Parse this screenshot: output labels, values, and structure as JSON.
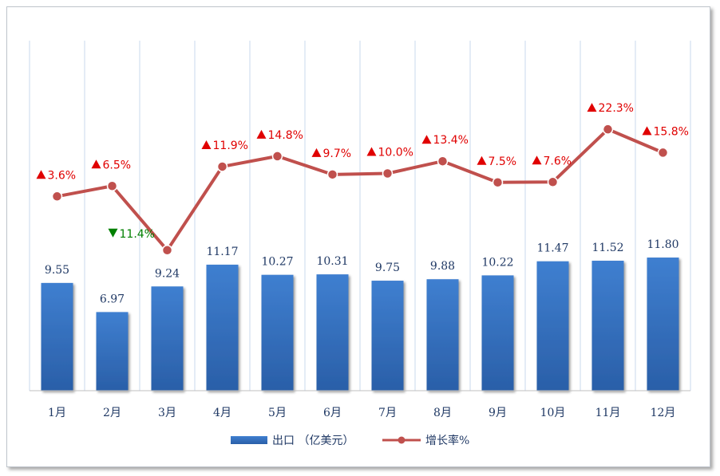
{
  "chart_data": {
    "type": "bar",
    "categories": [
      "1月",
      "2月",
      "3月",
      "4月",
      "5月",
      "6月",
      "7月",
      "8月",
      "9月",
      "10月",
      "11月",
      "12月"
    ],
    "series": [
      {
        "name": "出口（亿美元）",
        "type": "bar",
        "values": [
          9.55,
          6.97,
          9.24,
          11.17,
          10.27,
          10.31,
          9.75,
          9.88,
          10.22,
          11.47,
          11.52,
          11.8
        ],
        "labels": [
          "9.55",
          "6.97",
          "9.24",
          "11.17",
          "10.27",
          "10.31",
          "9.75",
          "9.88",
          "10.22",
          "11.47",
          "11.52",
          "11.80"
        ],
        "color": "#3a76c4"
      },
      {
        "name": "增长率%",
        "type": "line",
        "values": [
          3.6,
          6.5,
          -11.4,
          11.9,
          14.8,
          9.7,
          10.0,
          13.4,
          7.5,
          7.6,
          22.3,
          15.8
        ],
        "labels": [
          "3.6%",
          "6.5%",
          "11.4%",
          "11.9%",
          "14.8%",
          "9.7%",
          "10.0%",
          "13.4%",
          "7.5%",
          "7.6%",
          "22.3%",
          "15.8%"
        ],
        "color": "#c0504d"
      }
    ],
    "up_color": "#e00000",
    "down_color": "#008000",
    "grid": "vertical",
    "legend_position": "bottom"
  },
  "legend": {
    "bar_label": "出口 （亿美元）",
    "line_label": "增长率%"
  }
}
